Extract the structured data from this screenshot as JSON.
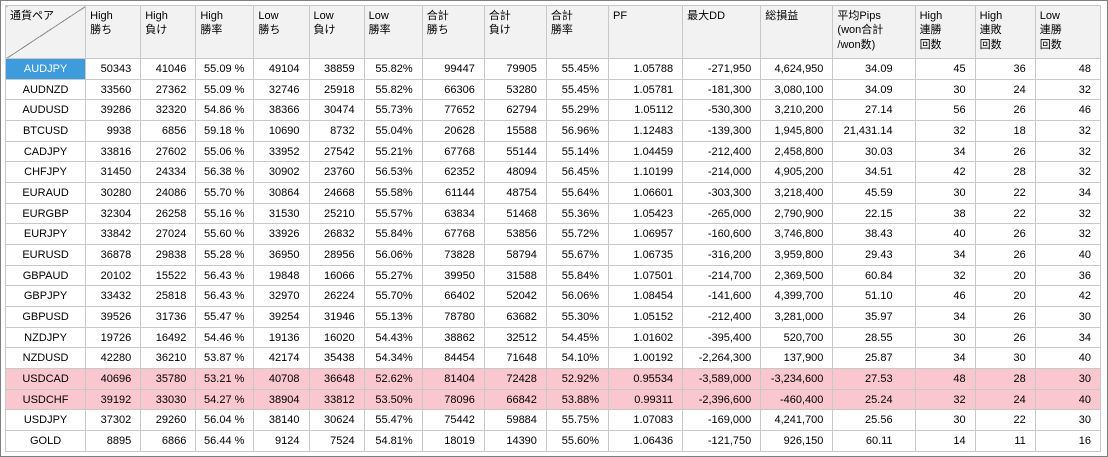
{
  "colors": {
    "header_bg": "#f2f2f2",
    "grid_line": "#c8c8c8",
    "outer_border": "#404040",
    "text": "#000000",
    "selected_cell_bg": "#3e9cdc",
    "selected_cell_text": "#ffffff",
    "loss_row_bg": "#f9c7cd"
  },
  "table": {
    "columns": [
      {
        "id": "pair",
        "label": "通貨ペア"
      },
      {
        "id": "high-win",
        "label": "High\n勝ち"
      },
      {
        "id": "high-lose",
        "label": "High\n負け"
      },
      {
        "id": "high-winrate",
        "label": "High\n勝率"
      },
      {
        "id": "low-win",
        "label": "Low\n勝ち"
      },
      {
        "id": "low-lose",
        "label": "Low\n負け"
      },
      {
        "id": "low-winrate",
        "label": "Low\n勝率"
      },
      {
        "id": "total-win",
        "label": "合計\n勝ち"
      },
      {
        "id": "total-lose",
        "label": "合計\n負け"
      },
      {
        "id": "total-winrate",
        "label": "合計\n勝率"
      },
      {
        "id": "pf",
        "label": "PF"
      },
      {
        "id": "max-dd",
        "label": "最大DD"
      },
      {
        "id": "total-pl",
        "label": "総損益"
      },
      {
        "id": "avg-pips",
        "label": "平均Pips\n(won合計\n/won数)"
      },
      {
        "id": "high-consec-wins",
        "label": "High\n連勝\n回数"
      },
      {
        "id": "high-consec-losses",
        "label": "High\n連敗\n回数"
      },
      {
        "id": "low-consec-wins",
        "label": "Low\n連勝\n回数"
      }
    ],
    "rows": [
      {
        "selected": true,
        "style": "normal",
        "cells": [
          "AUDJPY",
          "50343",
          "41046",
          "55.09 %",
          "49104",
          "38859",
          "55.82%",
          "99447",
          "79905",
          "55.45%",
          "1.05788",
          "-271,950",
          "4,624,950",
          "34.09",
          "45",
          "36",
          "48"
        ]
      },
      {
        "style": "normal",
        "cells": [
          "AUDNZD",
          "33560",
          "27362",
          "55.09 %",
          "32746",
          "25918",
          "55.82%",
          "66306",
          "53280",
          "55.45%",
          "1.05781",
          "-181,300",
          "3,080,100",
          "34.09",
          "30",
          "24",
          "32"
        ]
      },
      {
        "style": "normal",
        "cells": [
          "AUDUSD",
          "39286",
          "32320",
          "54.86 %",
          "38366",
          "30474",
          "55.73%",
          "77652",
          "62794",
          "55.29%",
          "1.05112",
          "-530,300",
          "3,210,200",
          "27.14",
          "56",
          "26",
          "46"
        ]
      },
      {
        "style": "normal",
        "cells": [
          "BTCUSD",
          "9938",
          "6856",
          "59.18 %",
          "10690",
          "8732",
          "55.04%",
          "20628",
          "15588",
          "56.96%",
          "1.12483",
          "-139,300",
          "1,945,800",
          "21,431.14",
          "32",
          "18",
          "32"
        ]
      },
      {
        "style": "normal",
        "cells": [
          "CADJPY",
          "33816",
          "27602",
          "55.06 %",
          "33952",
          "27542",
          "55.21%",
          "67768",
          "55144",
          "55.14%",
          "1.04459",
          "-212,400",
          "2,458,800",
          "30.03",
          "34",
          "26",
          "32"
        ]
      },
      {
        "style": "normal",
        "cells": [
          "CHFJPY",
          "31450",
          "24334",
          "56.38 %",
          "30902",
          "23760",
          "56.53%",
          "62352",
          "48094",
          "56.45%",
          "1.10199",
          "-214,000",
          "4,905,200",
          "34.51",
          "42",
          "28",
          "32"
        ]
      },
      {
        "style": "normal",
        "cells": [
          "EURAUD",
          "30280",
          "24086",
          "55.70 %",
          "30864",
          "24668",
          "55.58%",
          "61144",
          "48754",
          "55.64%",
          "1.06601",
          "-303,300",
          "3,218,400",
          "45.59",
          "30",
          "22",
          "34"
        ]
      },
      {
        "style": "normal",
        "cells": [
          "EURGBP",
          "32304",
          "26258",
          "55.16 %",
          "31530",
          "25210",
          "55.57%",
          "63834",
          "51468",
          "55.36%",
          "1.05423",
          "-265,000",
          "2,790,900",
          "22.15",
          "38",
          "22",
          "32"
        ]
      },
      {
        "style": "normal",
        "cells": [
          "EURJPY",
          "33842",
          "27024",
          "55.60 %",
          "33926",
          "26832",
          "55.84%",
          "67768",
          "53856",
          "55.72%",
          "1.06957",
          "-160,600",
          "3,746,800",
          "38.43",
          "40",
          "26",
          "32"
        ]
      },
      {
        "style": "normal",
        "cells": [
          "EURUSD",
          "36878",
          "29838",
          "55.28 %",
          "36950",
          "28956",
          "56.06%",
          "73828",
          "58794",
          "55.67%",
          "1.06735",
          "-316,200",
          "3,959,800",
          "29.43",
          "34",
          "26",
          "40"
        ]
      },
      {
        "style": "normal",
        "cells": [
          "GBPAUD",
          "20102",
          "15522",
          "56.43 %",
          "19848",
          "16066",
          "55.27%",
          "39950",
          "31588",
          "55.84%",
          "1.07501",
          "-214,700",
          "2,369,500",
          "60.84",
          "32",
          "20",
          "36"
        ]
      },
      {
        "style": "normal",
        "cells": [
          "GBPJPY",
          "33432",
          "25818",
          "56.43 %",
          "32970",
          "26224",
          "55.70%",
          "66402",
          "52042",
          "56.06%",
          "1.08454",
          "-141,600",
          "4,399,700",
          "51.10",
          "46",
          "20",
          "42"
        ]
      },
      {
        "style": "normal",
        "cells": [
          "GBPUSD",
          "39526",
          "31736",
          "55.47 %",
          "39254",
          "31946",
          "55.13%",
          "78780",
          "63682",
          "55.30%",
          "1.05152",
          "-212,400",
          "3,281,000",
          "35.97",
          "34",
          "26",
          "30"
        ]
      },
      {
        "style": "normal",
        "cells": [
          "NZDJPY",
          "19726",
          "16492",
          "54.46 %",
          "19136",
          "16020",
          "54.43%",
          "38862",
          "32512",
          "54.45%",
          "1.01602",
          "-395,400",
          "520,700",
          "28.55",
          "30",
          "26",
          "34"
        ]
      },
      {
        "style": "normal",
        "cells": [
          "NZDUSD",
          "42280",
          "36210",
          "53.87 %",
          "42174",
          "35438",
          "54.34%",
          "84454",
          "71648",
          "54.10%",
          "1.00192",
          "-2,264,300",
          "137,900",
          "25.87",
          "34",
          "30",
          "40"
        ]
      },
      {
        "style": "loss",
        "cells": [
          "USDCAD",
          "40696",
          "35780",
          "53.21 %",
          "40708",
          "36648",
          "52.62%",
          "81404",
          "72428",
          "52.92%",
          "0.95534",
          "-3,589,000",
          "-3,234,600",
          "27.53",
          "48",
          "28",
          "30"
        ]
      },
      {
        "style": "loss",
        "cells": [
          "USDCHF",
          "39192",
          "33030",
          "54.27 %",
          "38904",
          "33812",
          "53.50%",
          "78096",
          "66842",
          "53.88%",
          "0.99311",
          "-2,396,600",
          "-460,400",
          "25.24",
          "32",
          "24",
          "40"
        ]
      },
      {
        "style": "normal",
        "cells": [
          "USDJPY",
          "37302",
          "29260",
          "56.04 %",
          "38140",
          "30624",
          "55.47%",
          "75442",
          "59884",
          "55.75%",
          "1.07083",
          "-169,000",
          "4,241,700",
          "25.56",
          "30",
          "22",
          "30"
        ]
      },
      {
        "style": "normal",
        "cells": [
          "GOLD",
          "8895",
          "6866",
          "56.44 %",
          "9124",
          "7524",
          "54.81%",
          "18019",
          "14390",
          "55.60%",
          "1.06436",
          "-121,750",
          "926,150",
          "60.11",
          "14",
          "11",
          "16"
        ]
      }
    ]
  }
}
